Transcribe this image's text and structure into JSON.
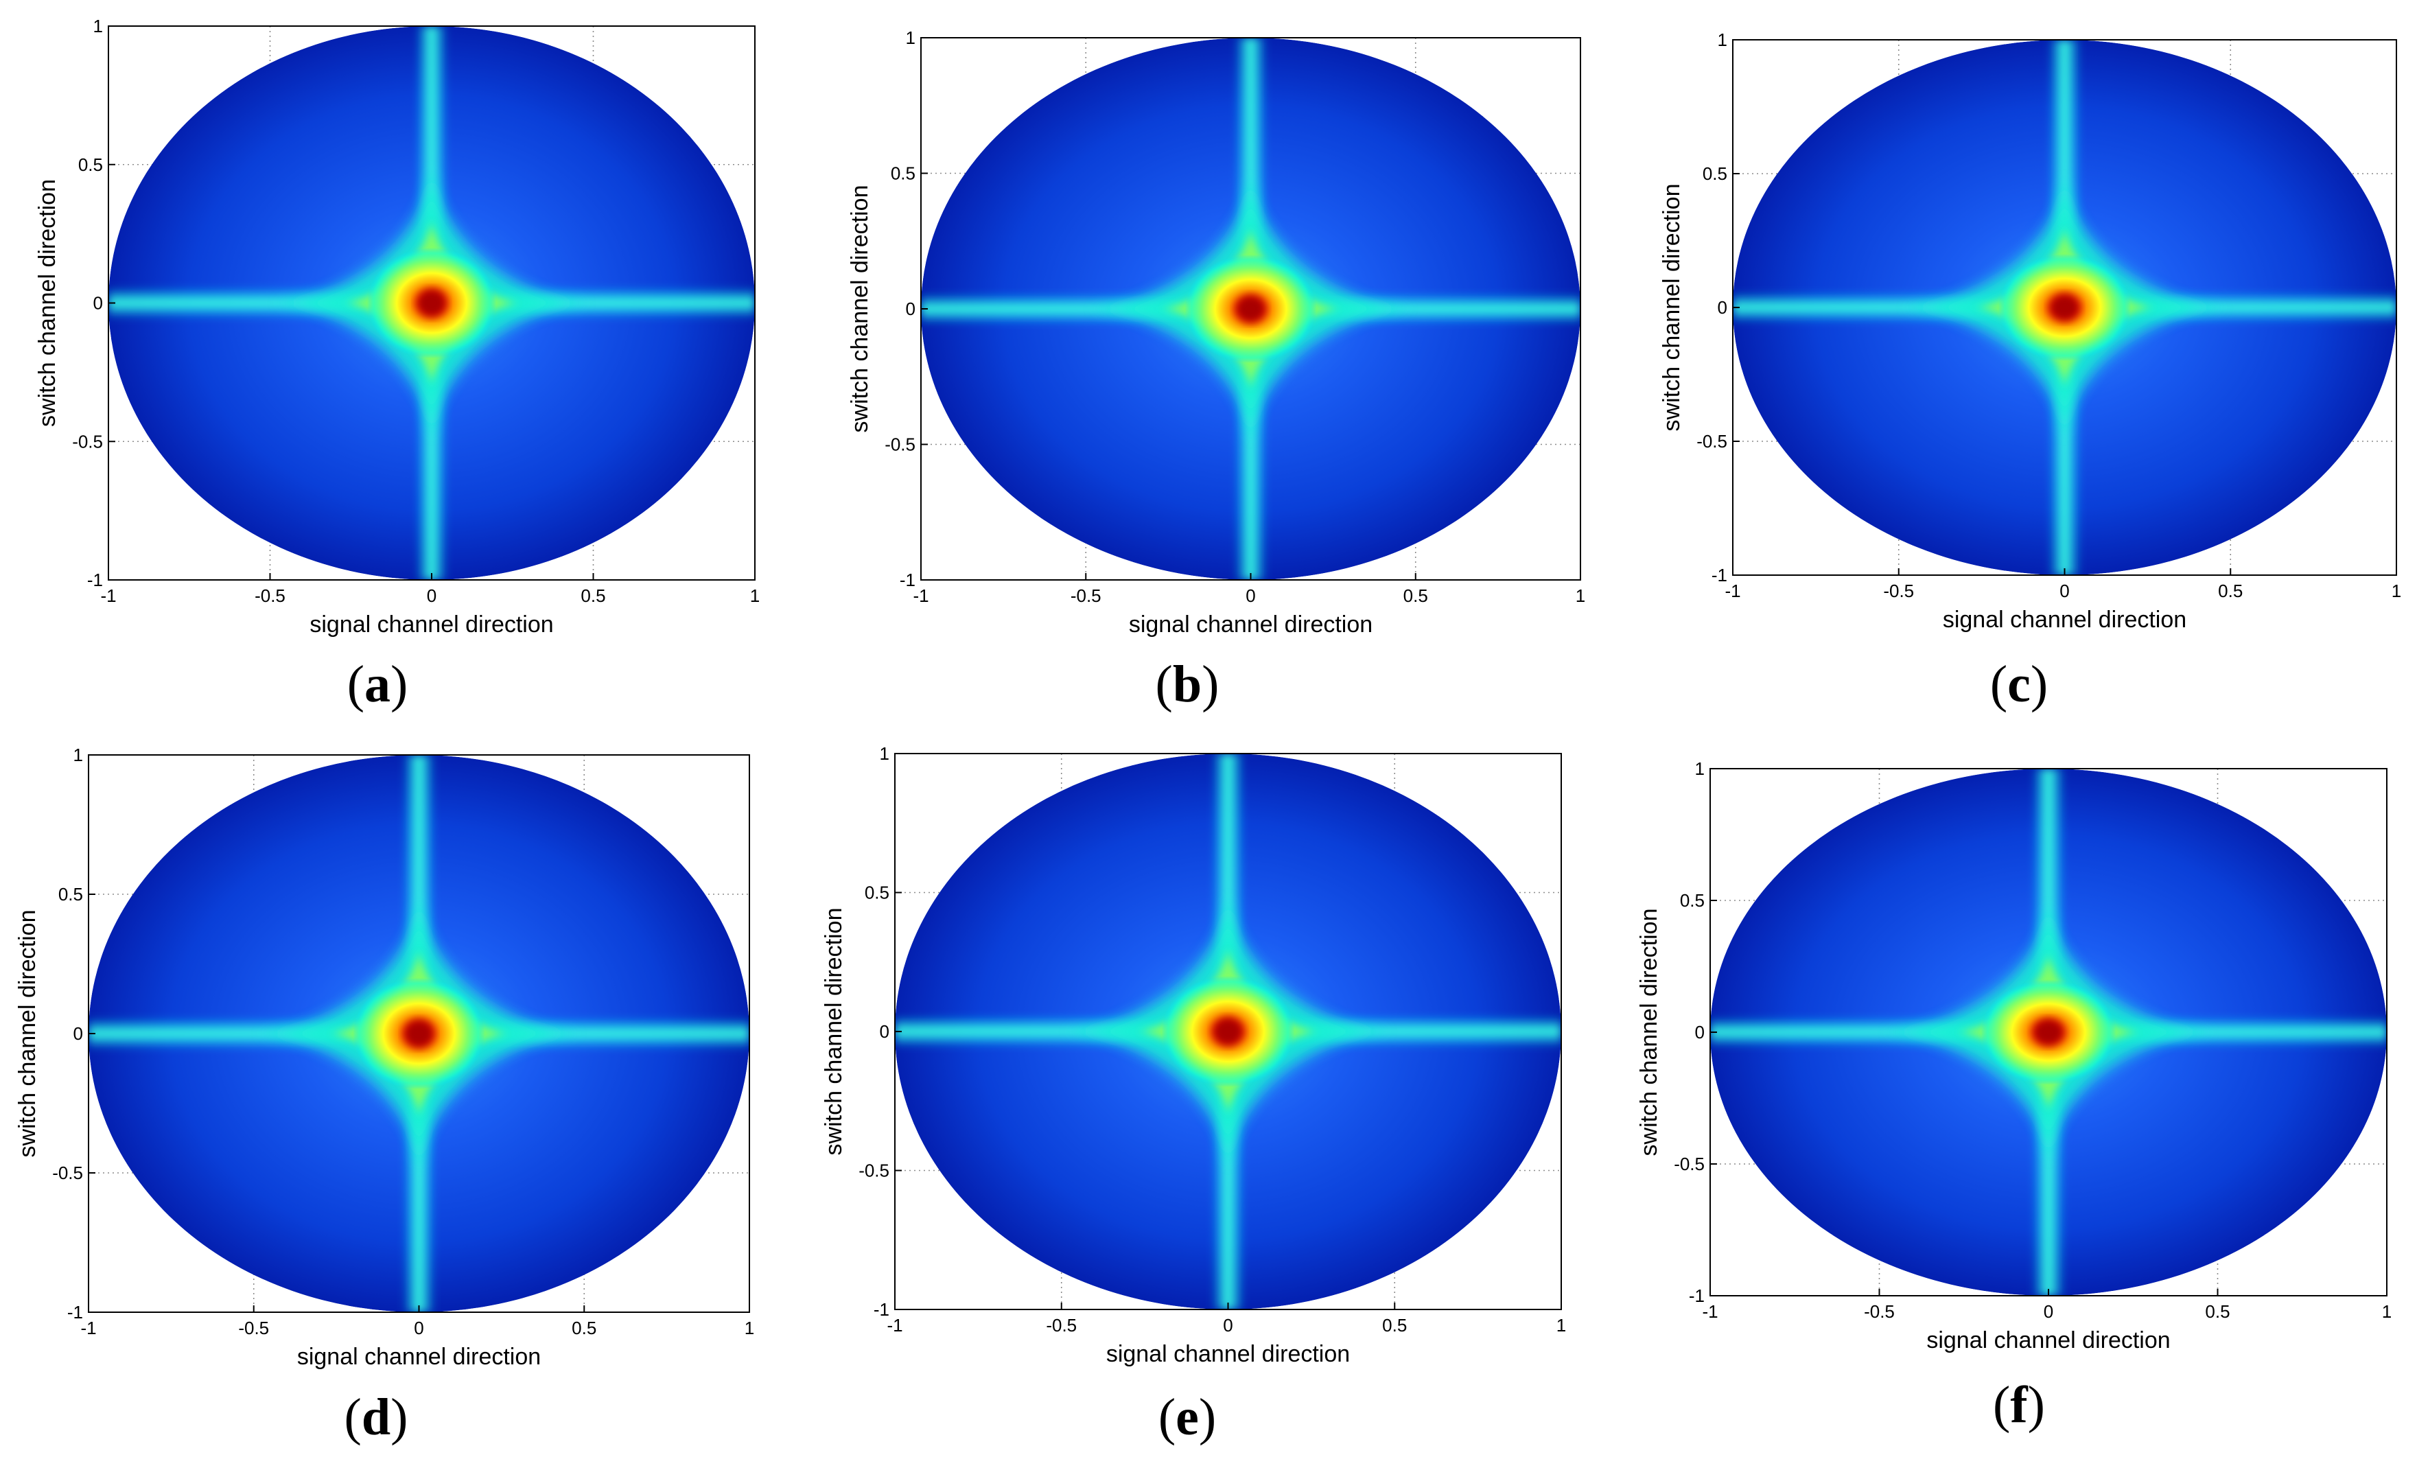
{
  "chart_data": [
    {
      "panel": "(a)",
      "panel_letter": "a",
      "type": "heatmap",
      "xlabel": "signal channel direction",
      "ylabel": "switch channel direction",
      "xlim": [
        -1,
        1
      ],
      "ylim": [
        -1,
        1
      ],
      "xticks": [
        "-1",
        "-0.5",
        "0",
        "0.5",
        "1"
      ],
      "yticks": [
        "-1",
        "-0.5",
        "0",
        "0.5",
        "1"
      ],
      "grid": true,
      "colormap": "jet",
      "domain_shape": "ellipse",
      "peak_at": [
        0,
        0
      ]
    },
    {
      "panel": "(b)",
      "panel_letter": "b",
      "type": "heatmap",
      "xlabel": "signal channel direction",
      "ylabel": "switch channel direction",
      "xlim": [
        -1,
        1
      ],
      "ylim": [
        -1,
        1
      ],
      "xticks": [
        "-1",
        "-0.5",
        "0",
        "0.5",
        "1"
      ],
      "yticks": [
        "-1",
        "-0.5",
        "0",
        "0.5",
        "1"
      ],
      "grid": true,
      "colormap": "jet",
      "domain_shape": "ellipse",
      "peak_at": [
        0,
        0
      ]
    },
    {
      "panel": "(c)",
      "panel_letter": "c",
      "type": "heatmap",
      "xlabel": "signal channel direction",
      "ylabel": "switch channel direction",
      "xlim": [
        -1,
        1
      ],
      "ylim": [
        -1,
        1
      ],
      "xticks": [
        "-1",
        "-0.5",
        "0",
        "0.5",
        "1"
      ],
      "yticks": [
        "-1",
        "-0.5",
        "0",
        "0.5",
        "1"
      ],
      "grid": true,
      "colormap": "jet",
      "domain_shape": "ellipse",
      "peak_at": [
        0,
        0
      ]
    },
    {
      "panel": "(d)",
      "panel_letter": "d",
      "type": "heatmap",
      "xlabel": "signal channel direction",
      "ylabel": "switch channel direction",
      "xlim": [
        -1,
        1
      ],
      "ylim": [
        -1,
        1
      ],
      "xticks": [
        "-1",
        "-0.5",
        "0",
        "0.5",
        "1"
      ],
      "yticks": [
        "-1",
        "-0.5",
        "0",
        "0.5",
        "1"
      ],
      "grid": true,
      "colormap": "jet",
      "domain_shape": "ellipse",
      "peak_at": [
        0,
        0
      ]
    },
    {
      "panel": "(e)",
      "panel_letter": "e",
      "type": "heatmap",
      "xlabel": "signal channel direction",
      "ylabel": "switch channel direction",
      "xlim": [
        -1,
        1
      ],
      "ylim": [
        -1,
        1
      ],
      "xticks": [
        "-1",
        "-0.5",
        "0",
        "0.5",
        "1"
      ],
      "yticks": [
        "-1",
        "-0.5",
        "0",
        "0.5",
        "1"
      ],
      "grid": true,
      "colormap": "jet",
      "domain_shape": "ellipse",
      "peak_at": [
        0,
        0
      ]
    },
    {
      "panel": "(f)",
      "panel_letter": "f",
      "type": "heatmap",
      "xlabel": "signal channel direction",
      "ylabel": "switch channel direction",
      "xlim": [
        -1,
        1
      ],
      "ylim": [
        -1,
        1
      ],
      "xticks": [
        "-1",
        "-0.5",
        "0",
        "0.5",
        "1"
      ],
      "yticks": [
        "-1",
        "-0.5",
        "0",
        "0.5",
        "1"
      ],
      "grid": true,
      "colormap": "jet",
      "domain_shape": "ellipse",
      "peak_at": [
        0,
        0
      ]
    }
  ]
}
